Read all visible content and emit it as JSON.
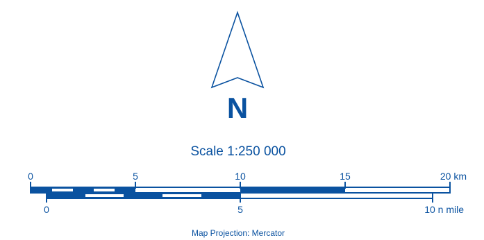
{
  "north_arrow": {
    "icon": "north-arrow-icon",
    "letter": "N"
  },
  "scale": {
    "label": "Scale 1:250 000"
  },
  "km_bar": {
    "ticks": [
      {
        "value": 0,
        "label": "0"
      },
      {
        "value": 5,
        "label": "5"
      },
      {
        "value": 10,
        "label": "10"
      },
      {
        "value": 15,
        "label": "15"
      },
      {
        "value": 20,
        "label": "20 km"
      }
    ]
  },
  "nmile_bar": {
    "ticks": [
      {
        "value": 0,
        "label": "0"
      },
      {
        "value": 5,
        "label": "5"
      },
      {
        "value": 10,
        "label": "10 n mile"
      }
    ]
  },
  "projection": {
    "label": "Map Projection: Mercator"
  },
  "colors": {
    "primary": "#0a52a0",
    "background": "#ffffff"
  }
}
